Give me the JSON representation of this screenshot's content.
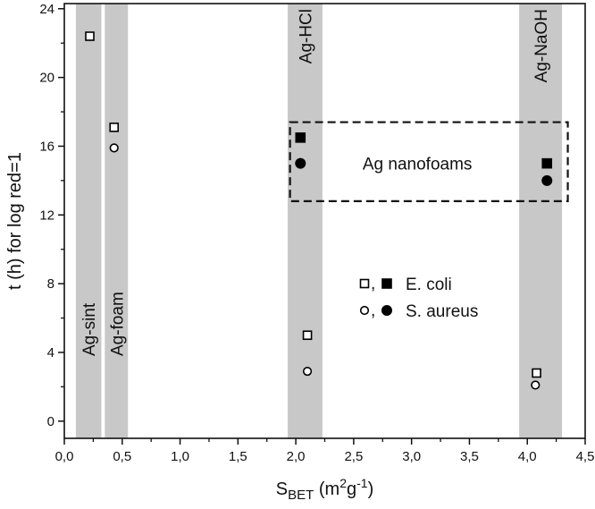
{
  "chart_data": {
    "type": "scatter",
    "xlabel_main": "S",
    "xlabel_sub": "BET",
    "xlabel_unit_pre": " (m",
    "xlabel_unit_sup1": "2",
    "xlabel_unit_mid": "g",
    "xlabel_unit_sup2": "-1",
    "xlabel_unit_post": ")",
    "ylabel": "t (h) for log red=1",
    "xlim": [
      0.0,
      4.5
    ],
    "ylim": [
      -1,
      24.3
    ],
    "xticks": [
      {
        "value": 0.0,
        "label": "0,0"
      },
      {
        "value": 0.5,
        "label": "0,5"
      },
      {
        "value": 1.0,
        "label": "1,0"
      },
      {
        "value": 1.5,
        "label": "1,5"
      },
      {
        "value": 2.0,
        "label": "2,0"
      },
      {
        "value": 2.5,
        "label": "2,5"
      },
      {
        "value": 3.0,
        "label": "3,0"
      },
      {
        "value": 3.5,
        "label": "3,5"
      },
      {
        "value": 4.0,
        "label": "4,0"
      },
      {
        "value": 4.5,
        "label": "4,5"
      }
    ],
    "yticks": [
      {
        "value": 0,
        "label": "0"
      },
      {
        "value": 4,
        "label": "4"
      },
      {
        "value": 8,
        "label": "8"
      },
      {
        "value": 12,
        "label": "12"
      },
      {
        "value": 16,
        "label": "16"
      },
      {
        "value": 20,
        "label": "20"
      },
      {
        "value": 24,
        "label": "24"
      }
    ],
    "bands": [
      {
        "label": "Ag-sint",
        "x0": 0.1,
        "x1": 0.32,
        "label_pos": "bottom"
      },
      {
        "label": "Ag-foam",
        "x0": 0.35,
        "x1": 0.55,
        "label_pos": "bottom"
      },
      {
        "label": "Ag-HCl",
        "x0": 1.93,
        "x1": 2.23,
        "label_pos": "top"
      },
      {
        "label": "Ag-NaOH",
        "x0": 3.93,
        "x1": 4.3,
        "label_pos": "top"
      }
    ],
    "band_color": "#c8c8c8",
    "series": [
      {
        "legend": "E. coli",
        "marker": "square",
        "filled": false,
        "points": [
          {
            "x": 0.22,
            "y": 22.4
          },
          {
            "x": 0.43,
            "y": 17.1
          },
          {
            "x": 2.1,
            "y": 5.0
          },
          {
            "x": 4.08,
            "y": 2.8
          }
        ]
      },
      {
        "legend": "E. coli",
        "marker": "square",
        "filled": true,
        "points": [
          {
            "x": 2.04,
            "y": 16.5
          },
          {
            "x": 4.17,
            "y": 15.0
          }
        ]
      },
      {
        "legend": "S. aureus",
        "marker": "circle",
        "filled": false,
        "points": [
          {
            "x": 0.43,
            "y": 15.9
          },
          {
            "x": 2.1,
            "y": 2.9
          },
          {
            "x": 4.07,
            "y": 2.1
          }
        ]
      },
      {
        "legend": "S. aureus",
        "marker": "circle",
        "filled": true,
        "points": [
          {
            "x": 2.04,
            "y": 15.0
          },
          {
            "x": 4.17,
            "y": 14.0
          }
        ]
      }
    ],
    "legend": {
      "placement": "center-right",
      "entries": [
        {
          "label": "E. coli",
          "open_marker": "square",
          "filled_marker": "square",
          "separator": ","
        },
        {
          "label": "S. aureus",
          "open_marker": "circle",
          "filled_marker": "circle",
          "separator": ","
        }
      ]
    },
    "annotation": {
      "text": "Ag nanofoams",
      "box": {
        "x0": 1.95,
        "x1": 4.35,
        "y0": 12.8,
        "y1": 17.4
      },
      "style": "dashed"
    },
    "grid": false
  }
}
